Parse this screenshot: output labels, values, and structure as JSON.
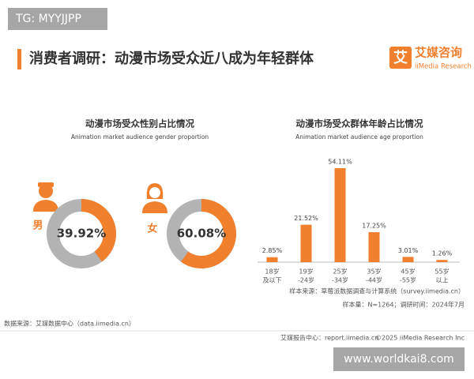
{
  "watermark_top": "TG: MYYJJPP",
  "header": {
    "title": "消费者调研：动漫市场受众近八成为年轻群体",
    "logo_char": "艾",
    "brand": "艾媒咨询",
    "brand_en": "iiMedia Research"
  },
  "chart_data": [
    {
      "type": "donut",
      "title": "动漫市场受众性别占比情况",
      "subtitle": "Animation market audience gender proportion",
      "categories": [
        "男",
        "女"
      ],
      "values": [
        39.92,
        60.08
      ],
      "value_labels": [
        "39.92%",
        "60.08%"
      ],
      "color": "#f07f2e",
      "track_color": "#b3b3b3"
    },
    {
      "type": "bar",
      "title": "动漫市场受众群体年龄占比情况",
      "subtitle": "Animation market audience age proportion",
      "categories": [
        [
          "18岁",
          "及以下"
        ],
        [
          "19岁",
          "-24岁"
        ],
        [
          "25岁",
          "-34岁"
        ],
        [
          "35岁",
          "-44岁"
        ],
        [
          "45岁",
          "-55岁"
        ],
        [
          "55岁",
          "以上"
        ]
      ],
      "values": [
        2.85,
        21.52,
        54.11,
        17.25,
        3.01,
        1.26
      ],
      "value_labels": [
        "2.85%",
        "21.52%",
        "54.11%",
        "17.25%",
        "3.01%",
        "1.26%"
      ],
      "color": "#f07f2e"
    }
  ],
  "footer": {
    "data_source": "数据来源：艾媒数据中心（data.iimedia.cn）",
    "sample_source": "样本来源：草莓派数据调查与计算系统（survey.iimedia.cn）",
    "sample_size": "样本量：N=1264；调研时间：2024年7月",
    "report_center": "艾媒报告中心：report.iimedia.cn",
    "copyright": "©2025 iiMedia Research Inc",
    "watermark": "www.worldkai8.com"
  }
}
